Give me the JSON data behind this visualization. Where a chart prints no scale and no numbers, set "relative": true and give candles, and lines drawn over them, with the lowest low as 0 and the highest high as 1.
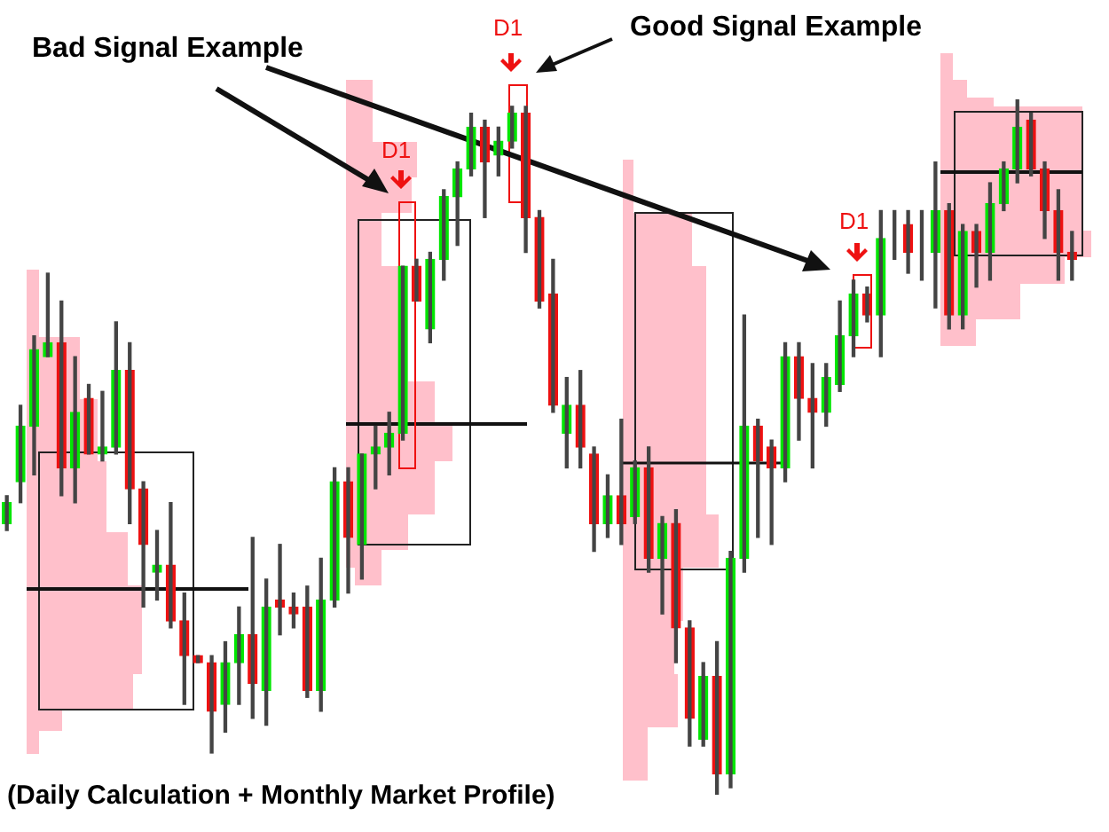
{
  "chart_data": {
    "type": "candlestick",
    "relative": true,
    "annotations": [
      "Bad Signal Example",
      "Good Signal Example",
      "D1",
      "D1",
      "D1",
      "(Daily Calculation + Monthly Market Profile)"
    ],
    "categories": [
      null,
      null,
      null,
      null,
      null,
      null,
      null,
      null,
      null,
      null,
      null,
      null,
      null,
      null,
      null,
      null,
      null,
      null,
      null,
      null,
      null,
      null,
      null,
      null,
      null,
      null,
      null,
      null,
      null,
      null,
      null,
      null,
      null,
      null,
      null,
      null,
      null,
      null,
      null,
      null,
      null,
      null,
      null,
      null,
      null,
      null,
      null,
      null,
      null,
      null,
      null,
      null,
      null,
      null,
      null,
      null,
      null,
      null,
      null,
      null,
      null,
      null,
      null,
      null,
      null,
      null,
      null,
      null,
      null,
      null,
      null,
      null,
      null,
      null,
      null,
      null,
      null,
      null,
      null
    ],
    "ohlc": [
      [
        0.39,
        0.43,
        0.38,
        0.42
      ],
      [
        0.45,
        0.56,
        0.42,
        0.53
      ],
      [
        0.53,
        0.66,
        0.46,
        0.64
      ],
      [
        0.63,
        0.75,
        0.63,
        0.65
      ],
      [
        0.65,
        0.71,
        0.43,
        0.47
      ],
      [
        0.47,
        0.63,
        0.42,
        0.55
      ],
      [
        0.57,
        0.59,
        0.49,
        0.49
      ],
      [
        0.49,
        0.58,
        0.48,
        0.5
      ],
      [
        0.5,
        0.68,
        0.49,
        0.61
      ],
      [
        0.61,
        0.65,
        0.39,
        0.44
      ],
      [
        0.44,
        0.45,
        0.27,
        0.36
      ],
      [
        0.32,
        0.38,
        0.28,
        0.33
      ],
      [
        0.33,
        0.42,
        0.24,
        0.25
      ],
      [
        0.25,
        0.29,
        0.13,
        0.2
      ],
      [
        0.2,
        0.2,
        0.19,
        0.19
      ],
      [
        0.19,
        0.2,
        0.06,
        0.12
      ],
      [
        0.13,
        0.22,
        0.09,
        0.19
      ],
      [
        0.19,
        0.27,
        0.13,
        0.23
      ],
      [
        0.23,
        0.37,
        0.11,
        0.16
      ],
      [
        0.15,
        0.31,
        0.1,
        0.27
      ],
      [
        0.28,
        0.36,
        0.23,
        0.27
      ],
      [
        0.27,
        0.29,
        0.24,
        0.26
      ],
      [
        0.27,
        0.3,
        0.14,
        0.15
      ],
      [
        0.15,
        0.34,
        0.12,
        0.28
      ],
      [
        0.28,
        0.47,
        0.27,
        0.45
      ],
      [
        0.45,
        0.47,
        0.29,
        0.37
      ],
      [
        0.36,
        0.49,
        0.31,
        0.49
      ],
      [
        0.49,
        0.53,
        0.44,
        0.5
      ],
      [
        0.5,
        0.55,
        0.46,
        0.52
      ],
      [
        0.52,
        0.76,
        0.51,
        0.76
      ],
      [
        0.76,
        0.77,
        0.71,
        0.71
      ],
      [
        0.67,
        0.78,
        0.65,
        0.77
      ],
      [
        0.77,
        0.87,
        0.74,
        0.86
      ],
      [
        0.86,
        0.91,
        0.79,
        0.9
      ],
      [
        0.9,
        0.98,
        0.89,
        0.96
      ],
      [
        0.96,
        0.97,
        0.83,
        0.91
      ],
      [
        0.92,
        0.96,
        0.89,
        0.94
      ],
      [
        0.94,
        0.99,
        0.93,
        0.98
      ],
      [
        0.98,
        0.99,
        0.78,
        0.83
      ],
      [
        0.83,
        0.84,
        0.7,
        0.71
      ],
      [
        0.72,
        0.77,
        0.55,
        0.56
      ],
      [
        0.52,
        0.6,
        0.47,
        0.56
      ],
      [
        0.56,
        0.61,
        0.47,
        0.5
      ],
      [
        0.49,
        0.5,
        0.35,
        0.39
      ],
      [
        0.39,
        0.46,
        0.37,
        0.43
      ],
      [
        0.43,
        0.54,
        0.36,
        0.39
      ],
      [
        0.4,
        0.48,
        0.39,
        0.47
      ],
      [
        0.47,
        0.5,
        0.32,
        0.34
      ],
      [
        0.34,
        0.4,
        0.26,
        0.39
      ],
      [
        0.39,
        0.41,
        0.19,
        0.24
      ],
      [
        0.24,
        0.25,
        0.07,
        0.11
      ],
      [
        0.08,
        0.19,
        0.07,
        0.17
      ],
      [
        0.17,
        0.22,
        0.0,
        0.03
      ],
      [
        0.03,
        0.35,
        0.01,
        0.34
      ],
      [
        0.34,
        0.69,
        0.32,
        0.53
      ],
      [
        0.53,
        0.54,
        0.37,
        0.48
      ],
      [
        0.5,
        0.51,
        0.36,
        0.47
      ],
      [
        0.47,
        0.65,
        0.45,
        0.63
      ],
      [
        0.63,
        0.65,
        0.51,
        0.57
      ],
      [
        0.57,
        0.62,
        0.47,
        0.55
      ],
      [
        0.55,
        0.62,
        0.53,
        0.6
      ],
      [
        0.59,
        0.71,
        0.58,
        0.66
      ],
      [
        0.66,
        0.74,
        0.63,
        0.72
      ],
      [
        0.72,
        0.73,
        0.68,
        0.69
      ],
      [
        0.69,
        0.84,
        0.63,
        0.8
      ],
      [
        0.81,
        0.84,
        0.77,
        0.81
      ],
      [
        0.82,
        0.84,
        0.75,
        0.78
      ],
      [
        0.78,
        0.84,
        0.74,
        0.78
      ],
      [
        0.78,
        0.91,
        0.7,
        0.84
      ],
      [
        0.84,
        0.85,
        0.67,
        0.69
      ],
      [
        0.69,
        0.82,
        0.67,
        0.81
      ],
      [
        0.81,
        0.82,
        0.73,
        0.78
      ],
      [
        0.78,
        0.88,
        0.74,
        0.85
      ],
      [
        0.85,
        0.91,
        0.84,
        0.9
      ],
      [
        0.9,
        1.0,
        0.88,
        0.96
      ],
      [
        0.97,
        0.98,
        0.89,
        0.9
      ],
      [
        0.9,
        0.91,
        0.8,
        0.84
      ],
      [
        0.84,
        0.87,
        0.74,
        0.78
      ],
      [
        0.78,
        0.81,
        0.74,
        0.77
      ]
    ],
    "colors": [
      "#00e600",
      "#00e600",
      "#00e600",
      "#00e600",
      "#ee1111",
      "#00e600",
      "#ee1111",
      "#00e600",
      "#00e600",
      "#ee1111",
      "#ee1111",
      "#00e600",
      "#ee1111",
      "#ee1111",
      "#ee1111",
      "#ee1111",
      "#00e600",
      "#00e600",
      "#ee1111",
      "#00e600",
      "#ee1111",
      "#ee1111",
      "#ee1111",
      "#00e600",
      "#00e600",
      "#ee1111",
      "#00e600",
      "#00e600",
      "#00e600",
      "#00e600",
      "#ee1111",
      "#00e600",
      "#00e600",
      "#00e600",
      "#00e600",
      "#ee1111",
      "#00e600",
      "#00e600",
      "#ee1111",
      "#ee1111",
      "#ee1111",
      "#00e600",
      "#ee1111",
      "#ee1111",
      "#00e600",
      "#ee1111",
      "#00e600",
      "#ee1111",
      "#00e600",
      "#ee1111",
      "#ee1111",
      "#00e600",
      "#ee1111",
      "#00e600",
      "#00e600",
      "#ee1111",
      "#ee1111",
      "#00e600",
      "#ee1111",
      "#ee1111",
      "#00e600",
      "#00e600",
      "#00e600",
      "#ee1111",
      "#00e600",
      "#000000",
      "#ee1111",
      "#66ee66",
      "#00e600",
      "#ee1111",
      "#00e600",
      "#ee1111",
      "#00e600",
      "#00e600",
      "#00e600",
      "#ee1111",
      "#ee1111",
      "#ee1111",
      "#ee1111"
    ]
  }
}
